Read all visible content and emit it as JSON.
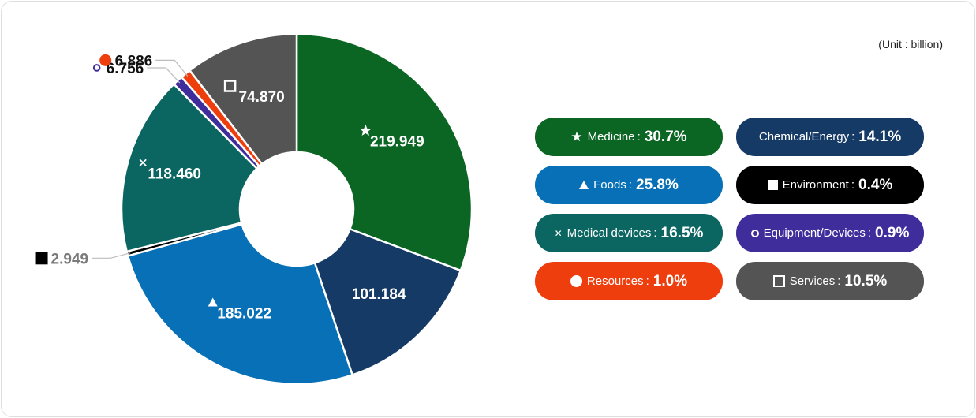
{
  "unit_note": "(Unit : billion)",
  "colors": {
    "Medicine": "#0b6624",
    "Chemical/Energy": "#163a66",
    "Foods": "#0870b6",
    "Environment": "#000000",
    "Medical devices": "#0b6561",
    "Equipment/Devices": "#3f2d9c",
    "Resources": "#ef3e0d",
    "Services": "#545454"
  },
  "chart_data": {
    "type": "pie",
    "variant": "donut",
    "unit": "billion",
    "slices": [
      {
        "name": "Medicine",
        "value": 219.949,
        "label": "219.949",
        "icon": "star-icon"
      },
      {
        "name": "Chemical/Energy",
        "value": 101.184,
        "label": "101.184",
        "icon": ""
      },
      {
        "name": "Foods",
        "value": 185.022,
        "label": "185.022",
        "icon": "triangle-icon"
      },
      {
        "name": "Environment",
        "value": 2.949,
        "label": "2.949",
        "icon": "filled-square-icon"
      },
      {
        "name": "Medical devices",
        "value": 118.46,
        "label": "118.460",
        "icon": "cross-icon"
      },
      {
        "name": "Equipment/Devices",
        "value": 6.756,
        "label": "6.756",
        "icon": "ring-icon"
      },
      {
        "name": "Resources",
        "value": 6.886,
        "label": "6.886",
        "icon": "filled-circle-icon"
      },
      {
        "name": "Services",
        "value": 74.87,
        "label": "74.870",
        "icon": "open-square-icon"
      }
    ]
  },
  "legend": [
    {
      "name": "Medicine",
      "pct": "30.7%",
      "icon": "star-icon"
    },
    {
      "name": "Chemical/Energy",
      "pct": "14.1%",
      "icon": ""
    },
    {
      "name": "Foods",
      "pct": "25.8%",
      "icon": "triangle-icon"
    },
    {
      "name": "Environment",
      "pct": "0.4%",
      "icon": "filled-square-icon"
    },
    {
      "name": "Medical devices",
      "pct": "16.5%",
      "icon": "cross-icon"
    },
    {
      "name": "Equipment/Devices",
      "pct": "0.9%",
      "icon": "ring-icon"
    },
    {
      "name": "Resources",
      "pct": "1.0%",
      "icon": "filled-circle-icon"
    },
    {
      "name": "Services",
      "pct": "10.5%",
      "icon": "open-square-icon"
    }
  ],
  "legend_sep": ":"
}
